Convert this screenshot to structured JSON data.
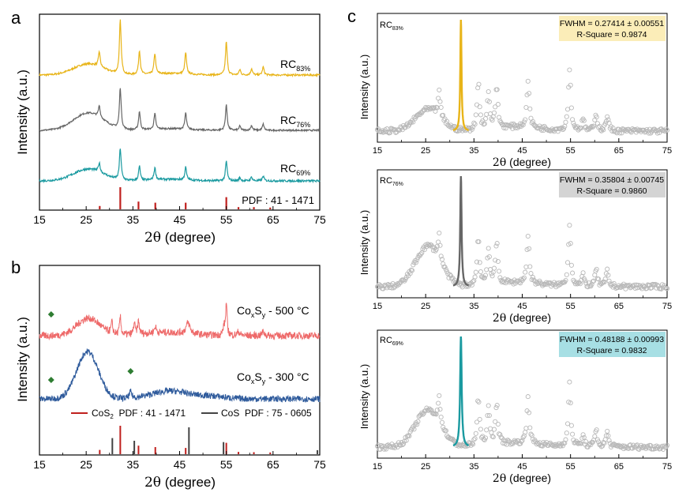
{
  "colors": {
    "rc83": "#e8b418",
    "rc76": "#666666",
    "rc69": "#1a9aa0",
    "pdf_ref": "#c0201e",
    "co500": "#ee6a6a",
    "co300": "#2f5b9c",
    "cos_ref": "#444444",
    "marker": "#2e7d32",
    "raw": "#b8b8b8",
    "box83": "#fbedb8",
    "box76": "#d4d4d4",
    "box69": "#a7dfe4"
  },
  "panels": {
    "a": {
      "label": "a",
      "ylabel": "Intensity (a.u.)",
      "xlabel_sym": "2θ",
      "xlabel_rest": " (degree)",
      "ref_label": "PDF : 41 - 1471",
      "curves": [
        {
          "main": "RC",
          "sub": "83%"
        },
        {
          "main": "RC",
          "sub": "76%"
        },
        {
          "main": "RC",
          "sub": "69%"
        }
      ]
    },
    "b": {
      "label": "b",
      "ylabel": "Intensity (a.u.)",
      "xlabel_sym": "2θ",
      "xlabel_rest": " (degree)",
      "curve_500": {
        "p1": "Co",
        "s1": "x",
        "p2": "S",
        "s2": "y",
        "rest": " - 500 °C"
      },
      "curve_300": {
        "p1": "Co",
        "s1": "x",
        "p2": "S",
        "s2": "y",
        "rest": " - 300 °C"
      },
      "legend": [
        {
          "main": "CoS",
          "sub": "2",
          "rest": "  PDF : 41 - 1471"
        },
        {
          "main": "CoS",
          "sub": "",
          "rest": "  PDF : 75 - 0605"
        }
      ]
    },
    "c": {
      "label": "c",
      "ylabel": "Intensity (a.u.)",
      "xlabel_sym": "2θ",
      "xlabel_rest": " (degree)",
      "fits": [
        {
          "main": "RC",
          "sub": "83%",
          "fwhm": "FWHM = 0.27414 ± 0.00551",
          "rsq": "R-Square = 0.9874"
        },
        {
          "main": "RC",
          "sub": "76%",
          "fwhm": "FWHM = 0.35804 ± 0.00745",
          "rsq": "R-Square = 0.9860"
        },
        {
          "main": "RC",
          "sub": "69%",
          "fwhm": "FWHM = 0.48188 ± 0.00993",
          "rsq": "R-Square = 0.9832"
        }
      ]
    }
  },
  "chart_data": [
    {
      "type": "line",
      "title": "",
      "xlabel": "2θ (degree)",
      "ylabel": "Intensity (a.u.)",
      "xlim": [
        15,
        75
      ],
      "xticks": [
        15,
        25,
        35,
        45,
        55,
        65,
        75
      ],
      "series": [
        {
          "name": "RC83%",
          "broad_hump_deg": 25,
          "peaks_deg": [
            27.8,
            32.3,
            36.4,
            39.7,
            46.3,
            55.0,
            57.9,
            60.4,
            62.9
          ]
        },
        {
          "name": "RC76%",
          "broad_hump_deg": 25,
          "peaks_deg": [
            27.8,
            32.3,
            36.4,
            39.7,
            46.3,
            55.0,
            57.9,
            60.4,
            62.9
          ]
        },
        {
          "name": "RC69%",
          "broad_hump_deg": 25,
          "peaks_deg": [
            27.8,
            32.3,
            36.4,
            39.7,
            46.3,
            55.0,
            57.9,
            60.4,
            62.9
          ]
        }
      ],
      "reference": {
        "name": "PDF : 41 - 1471",
        "x": [
          27.9,
          32.3,
          36.2,
          39.8,
          46.3,
          55.0,
          57.6,
          60.9,
          64.4
        ],
        "y": [
          0.15,
          1.0,
          0.35,
          0.3,
          0.3,
          0.55,
          0.1,
          0.1,
          0.08
        ]
      }
    },
    {
      "type": "line",
      "title": "",
      "xlabel": "2θ (degree)",
      "ylabel": "Intensity (a.u.)",
      "xlim": [
        15,
        75
      ],
      "xticks": [
        15,
        25,
        35,
        45,
        55,
        65,
        75
      ],
      "series": [
        {
          "name": "CoxSy - 500 °C",
          "broad_hump_deg": 25.5,
          "peaks_deg": [
            30.5,
            32.3,
            35.3,
            36.2,
            39.8,
            46.8,
            54.5,
            55.0
          ]
        },
        {
          "name": "CoxSy - 300 °C",
          "broad_hump_deg": 25.5,
          "peaks_deg": [
            34.5
          ]
        }
      ],
      "markers_deg": {
        "CoxSy - 500 °C": [
          17.5
        ],
        "CoxSy - 300 °C": [
          17.5,
          34.5
        ]
      },
      "reference": [
        {
          "name": "CoS2 PDF : 41 - 1471",
          "x": [
            27.9,
            32.3,
            36.2,
            39.8,
            46.3,
            55.0,
            57.6,
            60.9,
            64.4
          ],
          "y": [
            0.15,
            1.0,
            0.3,
            0.25,
            0.22,
            0.4,
            0.08,
            0.07,
            0.06
          ]
        },
        {
          "name": "CoS PDF : 75 - 0605",
          "x": [
            30.6,
            35.3,
            47.0,
            54.4,
            74.5
          ],
          "y": [
            0.6,
            0.5,
            1.0,
            0.45,
            0.15
          ]
        }
      ]
    },
    {
      "type": "scatter",
      "title": "",
      "xlabel": "2θ (degree)",
      "ylabel": "Intensity (a.u.)",
      "xlim": [
        15,
        75
      ],
      "xticks": [
        15,
        25,
        35,
        45,
        55,
        65,
        75
      ],
      "series": [
        {
          "name": "RC83%",
          "fit_center_deg": 32.3,
          "fwhm": 0.27414,
          "fwhm_err": 0.00551,
          "r_square": 0.9874
        },
        {
          "name": "RC76%",
          "fit_center_deg": 32.3,
          "fwhm": 0.35804,
          "fwhm_err": 0.00745,
          "r_square": 0.986
        },
        {
          "name": "RC69%",
          "fit_center_deg": 32.3,
          "fwhm": 0.48188,
          "fwhm_err": 0.00993,
          "r_square": 0.9832
        }
      ]
    }
  ]
}
